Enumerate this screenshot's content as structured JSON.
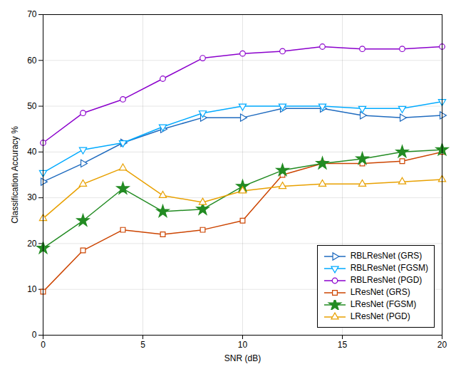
{
  "chart_data": {
    "type": "line",
    "x": [
      0,
      2,
      4,
      6,
      8,
      10,
      12,
      14,
      16,
      18,
      20
    ],
    "series": [
      {
        "name": "RBLResNet (GRS)",
        "color": "#1f6bbf",
        "marker": "triangle-right",
        "values": [
          33.5,
          37.5,
          42.0,
          45.0,
          47.5,
          47.5,
          49.5,
          49.5,
          48.0,
          47.5,
          48.0
        ]
      },
      {
        "name": "RBLResNet (FGSM)",
        "color": "#00aaff",
        "marker": "triangle-down",
        "values": [
          35.5,
          40.5,
          42.0,
          45.5,
          48.5,
          50.0,
          50.0,
          50.0,
          49.5,
          49.5,
          51.0
        ]
      },
      {
        "name": "RBLResNet (PGD)",
        "color": "#8b00cc",
        "marker": "circle",
        "values": [
          42.0,
          48.5,
          51.5,
          56.0,
          60.5,
          61.5,
          62.0,
          63.0,
          62.5,
          62.5,
          63.0
        ]
      },
      {
        "name": "LResNet (GRS)",
        "color": "#cc4400",
        "marker": "square",
        "values": [
          9.5,
          18.5,
          23.0,
          22.0,
          23.0,
          25.0,
          35.0,
          37.5,
          37.5,
          38.0,
          40.0
        ]
      },
      {
        "name": "LResNet (FGSM)",
        "color": "#228b22",
        "marker": "star",
        "values": [
          19.0,
          25.0,
          32.0,
          27.0,
          27.5,
          32.5,
          36.0,
          37.5,
          38.5,
          40.0,
          40.5
        ]
      },
      {
        "name": "LResNet (PGD)",
        "color": "#e8a000",
        "marker": "triangle-up",
        "values": [
          25.5,
          33.0,
          36.5,
          30.5,
          29.0,
          31.5,
          32.5,
          33.0,
          33.0,
          33.5,
          34.0
        ]
      }
    ],
    "x_label": "SNR (dB)",
    "y_label": "Classification Accuracy %",
    "xlim": [
      0,
      20
    ],
    "xticks": [
      0,
      5,
      10,
      15,
      20
    ],
    "ylim": [
      0,
      70
    ],
    "yticks": [
      0,
      10,
      20,
      30,
      40,
      50,
      60,
      70
    ],
    "grid": true,
    "legend": "lower right"
  }
}
